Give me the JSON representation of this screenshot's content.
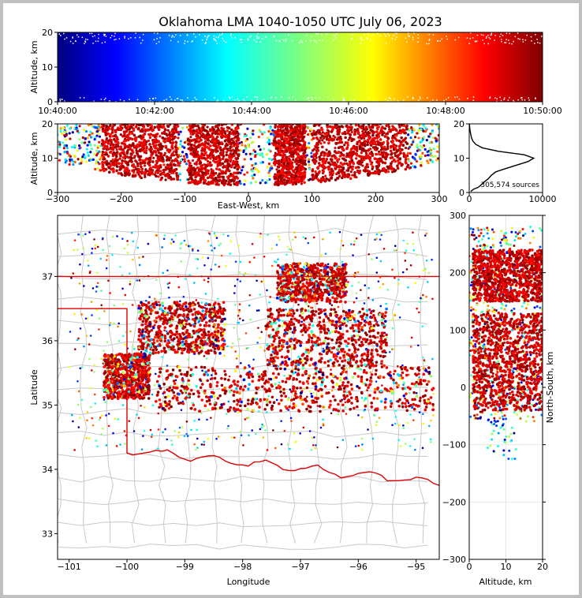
{
  "title": "Oklahoma LMA 1040-1050 UTC July 06, 2023",
  "colors": {
    "state_border": "#e00000",
    "county": "#c8c8c8",
    "frame": "#c0c0c0"
  },
  "chart_data": [
    {
      "id": "time_height",
      "type": "scatter",
      "ylabel": "Altitude, km",
      "ylim": [
        0,
        20
      ],
      "xtick_labels": [
        "10:40:00",
        "10:42:00",
        "10:44:00",
        "10:46:00",
        "10:48:00",
        "10:50:00"
      ],
      "ytick_labels": [
        "0",
        "10",
        "20"
      ],
      "yticks": [
        0,
        10,
        20
      ],
      "color_by": "time (jet colormap)"
    },
    {
      "id": "ew_altitude",
      "type": "scatter",
      "xlabel": "East-West, km",
      "ylabel": "Altitude, km",
      "xlim": [
        -300,
        300
      ],
      "ylim": [
        0,
        20
      ],
      "xticks": [
        -300,
        -200,
        -100,
        0,
        100,
        200,
        300
      ],
      "yticks": [
        0,
        10,
        20
      ],
      "xtick_labels": [
        "−300",
        "−200",
        "−100",
        "0",
        "100",
        "200",
        "300"
      ],
      "ytick_labels": [
        "0",
        "10",
        "20"
      ],
      "density_bands_km": [
        [
          -230,
          -110
        ],
        [
          -95,
          -15
        ],
        [
          40,
          90
        ],
        [
          100,
          250
        ]
      ]
    },
    {
      "id": "altitude_histogram",
      "type": "line",
      "annotation": "305,574 sources",
      "xlim": [
        0,
        10000
      ],
      "ylim": [
        0,
        20
      ],
      "xticks": [
        0,
        10000
      ],
      "yticks": [
        0,
        10,
        20
      ],
      "xtick_labels": [
        "0",
        "10000"
      ],
      "ytick_labels": [
        "0",
        "10",
        "20"
      ],
      "peak": {
        "altitude_km": 10,
        "count": 8800
      },
      "profile": [
        [
          0.3,
          200
        ],
        [
          1,
          600
        ],
        [
          1.5,
          1200
        ],
        [
          2,
          1500
        ],
        [
          3,
          2000
        ],
        [
          4,
          2600
        ],
        [
          5,
          3000
        ],
        [
          6,
          3600
        ],
        [
          7,
          5000
        ],
        [
          8,
          6500
        ],
        [
          9,
          8000
        ],
        [
          10,
          8800
        ],
        [
          11,
          7500
        ],
        [
          12,
          4000
        ],
        [
          13,
          1800
        ],
        [
          14,
          900
        ],
        [
          15,
          500
        ],
        [
          16,
          300
        ],
        [
          17,
          200
        ],
        [
          18,
          120
        ],
        [
          19,
          60
        ],
        [
          20,
          20
        ]
      ]
    },
    {
      "id": "plan_view",
      "type": "scatter",
      "xlabel": "Longitude",
      "ylabel": "Latitude",
      "xlim": [
        -101.2,
        -94.6
      ],
      "ylim": [
        32.6,
        37.95
      ],
      "xticks": [
        -101,
        -100,
        -99,
        -98,
        -97,
        -96,
        -95
      ],
      "yticks": [
        33,
        34,
        35,
        36,
        37
      ],
      "xtick_labels": [
        "−101",
        "−100",
        "−99",
        "−98",
        "−97",
        "−96",
        "−95"
      ],
      "ytick_labels": [
        "33",
        "34",
        "35",
        "36",
        "37"
      ],
      "storm_regions": [
        {
          "lon": [
            -100.4,
            -99.6
          ],
          "lat": [
            35.1,
            35.8
          ]
        },
        {
          "lon": [
            -99.8,
            -98.3
          ],
          "lat": [
            35.8,
            36.6
          ]
        },
        {
          "lon": [
            -99.5,
            -94.7
          ],
          "lat": [
            34.9,
            35.6
          ]
        },
        {
          "lon": [
            -97.4,
            -96.2
          ],
          "lat": [
            36.6,
            37.2
          ]
        },
        {
          "lon": [
            -97.6,
            -95.5
          ],
          "lat": [
            35.6,
            36.5
          ]
        }
      ]
    },
    {
      "id": "altitude_ns",
      "type": "scatter",
      "xlabel": "Altitude, km",
      "ylabel": "North-South, km",
      "xlim": [
        0,
        20
      ],
      "ylim": [
        -300,
        300
      ],
      "xticks": [
        0,
        10,
        20
      ],
      "yticks": [
        -300,
        -200,
        -100,
        0,
        100,
        200,
        300
      ],
      "xtick_labels": [
        "0",
        "10",
        "20"
      ],
      "ytick_labels": [
        "−300",
        "−200",
        "−100",
        "0",
        "100",
        "200",
        "300"
      ],
      "density_bands_km": [
        [
          -40,
          130
        ],
        [
          150,
          240
        ]
      ]
    }
  ]
}
